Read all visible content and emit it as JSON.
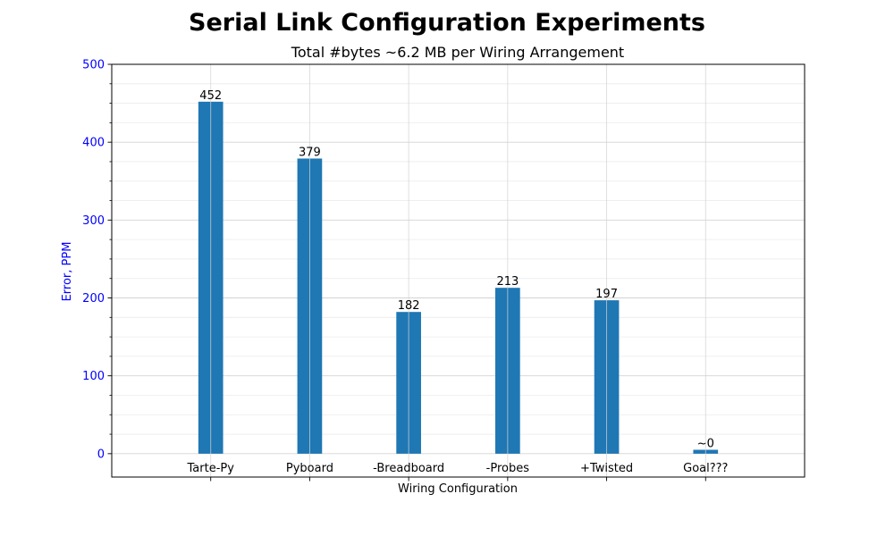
{
  "chart_data": {
    "type": "bar",
    "title": "Serial Link Configuration Experiments",
    "subtitle": "Total #bytes ~6.2 MB per Wiring Arrangement",
    "xlabel": "Wiring Configuration",
    "ylabel": "Error, PPM",
    "categories": [
      "Tarte-Py",
      "Pyboard",
      "-Breadboard",
      "-Probes",
      "+Twisted",
      "Goal???"
    ],
    "values": [
      452,
      379,
      182,
      213,
      197,
      5
    ],
    "value_labels": [
      "452",
      "379",
      "182",
      "213",
      "197",
      "~0"
    ],
    "ylim": [
      -30,
      500
    ],
    "xlim": [
      -1,
      6
    ],
    "yticks": [
      0,
      100,
      200,
      300,
      400,
      500
    ],
    "ytick_labels": [
      "0",
      "100",
      "200",
      "300",
      "400",
      "500"
    ],
    "grid": true,
    "minor_grid": true,
    "bar_color": "#1f77b4",
    "ytick_color": "#0000ff",
    "ylabel_color": "#0000ff"
  }
}
